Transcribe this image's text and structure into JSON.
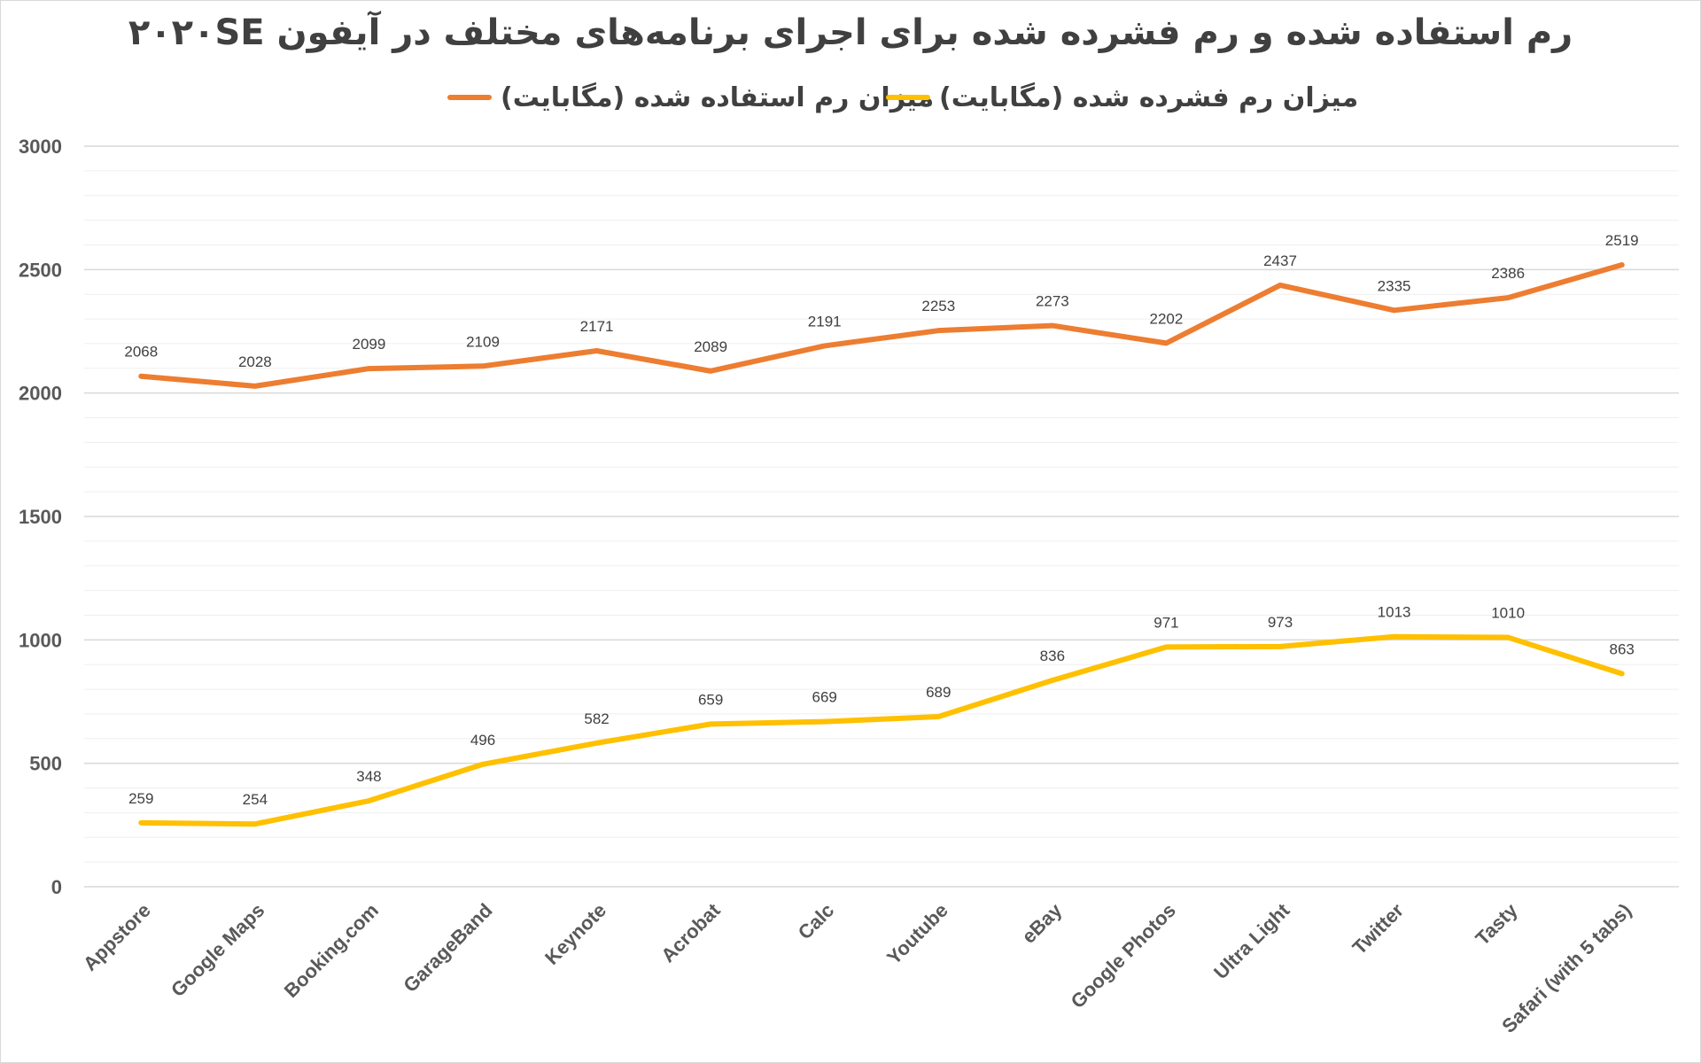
{
  "chart_data": {
    "type": "line",
    "title": "رم استفاده شده و رم فشرده شده برای اجرای برنامه‌های مختلف در آیفون ۲۰۲۰SE",
    "xlabel": "",
    "ylabel": "",
    "ylim": [
      0,
      3000
    ],
    "yticks": [
      0,
      500,
      1000,
      1500,
      2000,
      2500,
      3000
    ],
    "grid": true,
    "legend_position": "top",
    "categories": [
      "Appstore",
      "Google Maps",
      "Booking.com",
      "GarageBand",
      "Keynote",
      "Acrobat",
      "Calc",
      "Youtube",
      "eBay",
      "Google Photos",
      "Ultra Light",
      "Twitter",
      "Tasty",
      "Safari (with 5 tabs)"
    ],
    "series": [
      {
        "name": "میزان رم استفاده شده (مگابایت)",
        "color": "#ED7D31",
        "values": [
          2068,
          2028,
          2099,
          2109,
          2171,
          2089,
          2191,
          2253,
          2273,
          2202,
          2437,
          2335,
          2386,
          2519
        ]
      },
      {
        "name": "میزان رم فشرده شده (مگابایت)",
        "color": "#FFC000",
        "values": [
          259,
          254,
          348,
          496,
          582,
          659,
          669,
          689,
          836,
          971,
          973,
          1013,
          1010,
          863
        ]
      }
    ]
  }
}
